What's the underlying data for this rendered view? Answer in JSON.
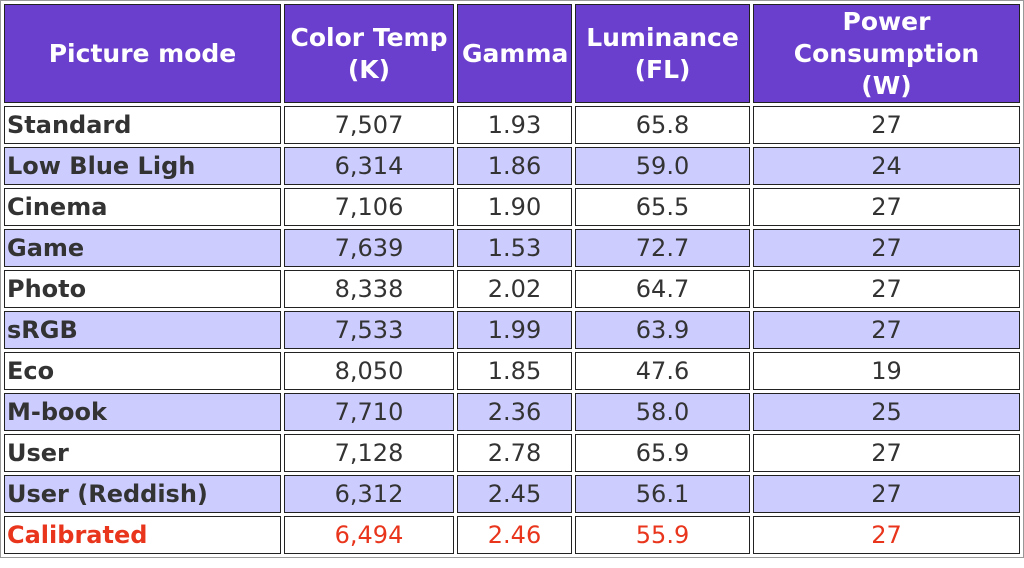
{
  "table": {
    "header": [
      [
        "Picture mode"
      ],
      [
        "Color Temp",
        "(K)"
      ],
      [
        "Gamma"
      ],
      [
        "Luminance",
        "(FL)"
      ],
      [
        "Power",
        "Consumption",
        "(W)"
      ]
    ],
    "rows": [
      [
        "Standard",
        "7,507",
        "1.93",
        "65.8",
        "27"
      ],
      [
        "Low Blue Ligh",
        "6,314",
        "1.86",
        "59.0",
        "24"
      ],
      [
        "Cinema",
        "7,106",
        "1.90",
        "65.5",
        "27"
      ],
      [
        "Game",
        "7,639",
        "1.53",
        "72.7",
        "27"
      ],
      [
        "Photo",
        "8,338",
        "2.02",
        "64.7",
        "27"
      ],
      [
        "sRGB",
        "7,533",
        "1.99",
        "63.9",
        "27"
      ],
      [
        "Eco",
        "8,050",
        "1.85",
        "47.6",
        "19"
      ],
      [
        "M-book",
        "7,710",
        "2.36",
        "58.0",
        "25"
      ],
      [
        "User",
        "7,128",
        "2.78",
        "65.9",
        "27"
      ],
      [
        "User (Reddish)",
        "6,312",
        "2.45",
        "56.1",
        "27"
      ],
      [
        "Calibrated",
        "6,494",
        "2.46",
        "55.9",
        "27"
      ]
    ]
  }
}
